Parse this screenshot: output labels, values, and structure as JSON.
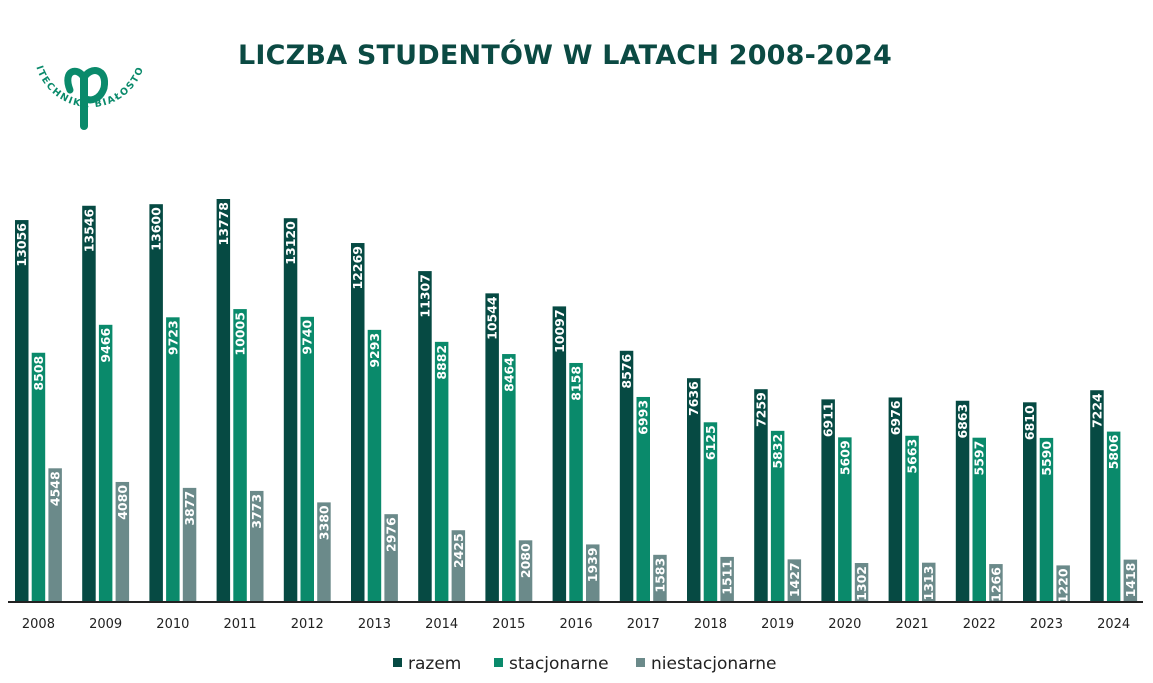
{
  "logo": {
    "text": "POLITECHNIKA BIAŁOSTOCKA",
    "color": "#0a8a6b"
  },
  "chart_data": {
    "type": "bar",
    "title": "LICZBA STUDENTÓW W LATACH 2008-2024",
    "categories": [
      "2008",
      "2009",
      "2010",
      "2011",
      "2012",
      "2013",
      "2014",
      "2015",
      "2016",
      "2017",
      "2018",
      "2019",
      "2020",
      "2021",
      "2022",
      "2023",
      "2024"
    ],
    "series": [
      {
        "name": "razem",
        "color": "#064a43",
        "values": [
          13056,
          13546,
          13600,
          13778,
          13120,
          12269,
          11307,
          10544,
          10097,
          8576,
          7636,
          7259,
          6911,
          6976,
          6863,
          6810,
          7224
        ]
      },
      {
        "name": "stacjonarne",
        "color": "#0a8a6b",
        "values": [
          8508,
          9466,
          9723,
          10005,
          9740,
          9293,
          8882,
          8464,
          8158,
          6993,
          6125,
          5832,
          5609,
          5663,
          5597,
          5590,
          5806
        ]
      },
      {
        "name": "niestacjonarne",
        "color": "#6b8a8a",
        "values": [
          4548,
          4080,
          3877,
          3773,
          3380,
          2976,
          2425,
          2080,
          1939,
          1583,
          1511,
          1427,
          1302,
          1313,
          1266,
          1220,
          1418
        ]
      }
    ],
    "ylim": [
      0,
      14000
    ],
    "grid": false,
    "legend_position": "bottom-center",
    "data_labels": "vertical-inside-bar"
  }
}
